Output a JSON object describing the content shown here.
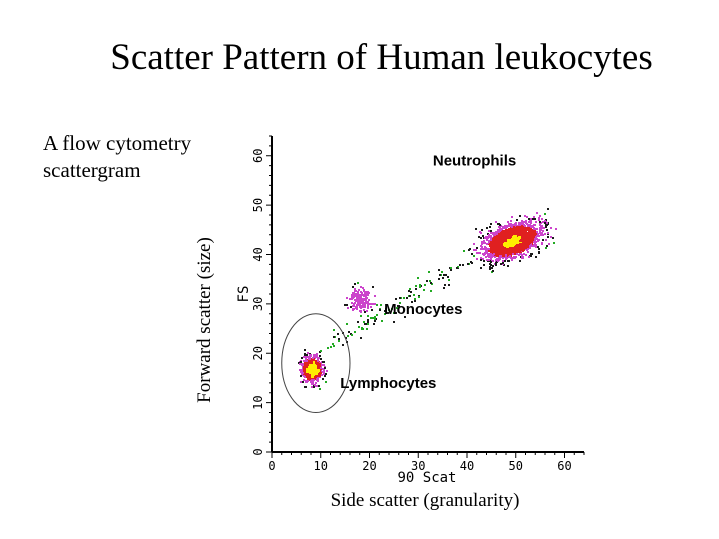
{
  "page": {
    "title": "Scatter Pattern of Human leukocytes",
    "description_line1": "A flow cytometry",
    "description_line2": "scattergram",
    "outer_ylabel": "Forward scatter (size)",
    "outer_xlabel": "Side scatter (granularity)"
  },
  "chart_data": {
    "type": "scatter",
    "xlabel": "90 Scat",
    "ylabel": "FS",
    "xlim": [
      0,
      64
    ],
    "ylim": [
      0,
      64
    ],
    "xticks": [
      "0",
      "10",
      "20",
      "30",
      "40",
      "50",
      "60"
    ],
    "yticks": [
      "0",
      "10",
      "20",
      "30",
      "40",
      "50",
      "60"
    ],
    "grid": false,
    "annotations": [
      {
        "text": "Neutrophils",
        "x": 33,
        "y": 58
      },
      {
        "text": "Monocytes",
        "x": 23,
        "y": 28
      },
      {
        "text": "Lymphocytes",
        "x": 14,
        "y": 13
      }
    ],
    "clusters": [
      {
        "population": "Neutrophils",
        "center_x": 49,
        "center_y": 43,
        "spread_x": 8,
        "spread_y": 4.5
      },
      {
        "population": "Monocytes",
        "center_x": 18,
        "center_y": 31,
        "spread_x": 3,
        "spread_y": 3
      },
      {
        "population": "Lymphocytes",
        "center_x": 8,
        "center_y": 17,
        "spread_x": 3,
        "spread_y": 3.5
      }
    ],
    "gate": {
      "population": "Lymphocytes",
      "center_x": 9,
      "center_y": 18,
      "radius_x": 7,
      "radius_y": 10
    },
    "density_colors": {
      "low": "#1a1a1a",
      "low_alt": "#22aa22",
      "medium": "#cc44cc",
      "high": "#e02020",
      "peak": "#ffee00"
    }
  }
}
